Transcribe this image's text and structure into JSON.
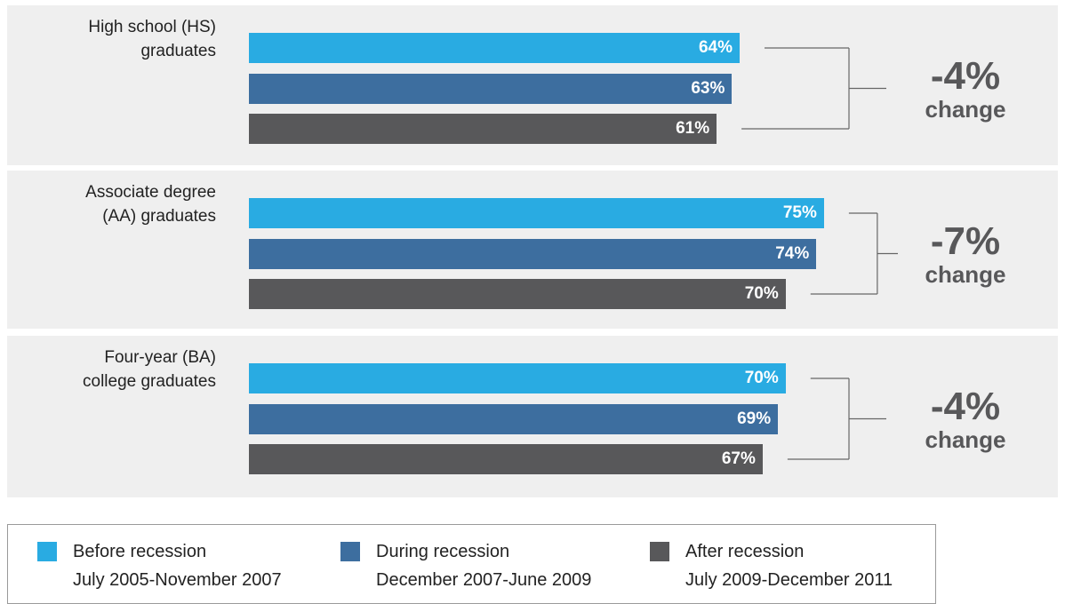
{
  "chart_data": {
    "type": "bar",
    "orientation": "horizontal",
    "categories": [
      "High school (HS)\ngraduates",
      "Associate degree\n(AA) graduates",
      "Four-year (BA)\ncollege graduates"
    ],
    "series": [
      {
        "name": "Before recession",
        "period": "July 2005-November 2007",
        "color": "#29abe2",
        "values": [
          64,
          75,
          70
        ],
        "value_labels": [
          "64%",
          "75%",
          "70%"
        ]
      },
      {
        "name": "During recession",
        "period": "December 2007-June 2009",
        "color": "#3d6e9f",
        "values": [
          63,
          74,
          69
        ],
        "value_labels": [
          "63%",
          "74%",
          "69%"
        ]
      },
      {
        "name": "After recession",
        "period": "July 2009-December 2011",
        "color": "#58585a",
        "values": [
          61,
          70,
          67
        ],
        "value_labels": [
          "61%",
          "70%",
          "67%"
        ]
      }
    ],
    "annotations": [
      {
        "text": "-4%",
        "note": "change"
      },
      {
        "text": "-7%",
        "note": "change"
      },
      {
        "text": "-4%",
        "note": "change"
      }
    ]
  }
}
